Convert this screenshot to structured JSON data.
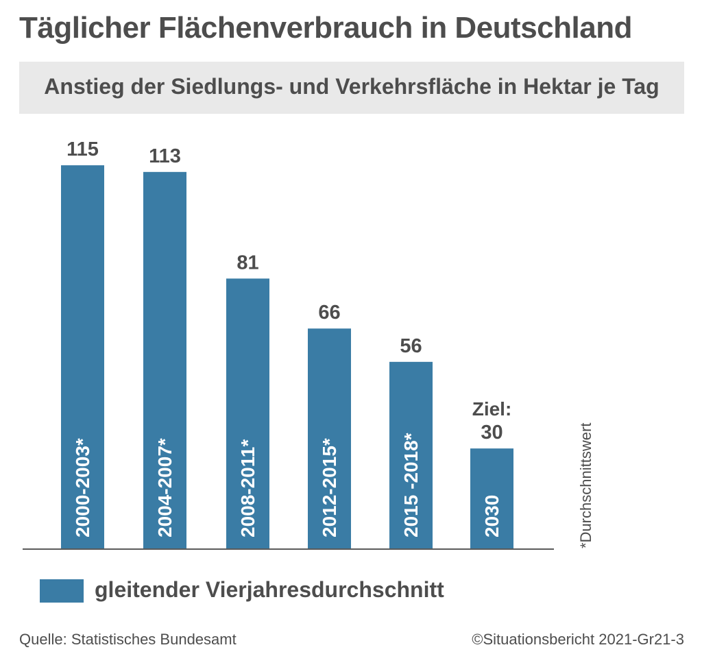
{
  "header": {
    "title": "Täglicher Flächenverbrauch in Deutschland",
    "subtitle": "Anstieg der Siedlungs- und Verkehrsfläche in Hektar je Tag"
  },
  "chart_data": {
    "type": "bar",
    "categories": [
      "2000-2003*",
      "2004-2007*",
      "2008-2011*",
      "2012-2015*",
      "2015 -2018*",
      "2030"
    ],
    "values": [
      115,
      113,
      81,
      66,
      56,
      30
    ],
    "value_labels": [
      "115",
      "113",
      "81",
      "66",
      "56",
      "30"
    ],
    "target_prefix": "Ziel:",
    "target_index": 5,
    "ylim": [
      0,
      120
    ],
    "grid": false,
    "bar_color": "#3a7ca5",
    "legend": {
      "label": "gleitender Vierjahresdurchschnitt",
      "position": "bottom-left"
    },
    "footnote": "*Durchschnittswert"
  },
  "footer": {
    "source": "Quelle: Statistisches Bundesamt",
    "copyright": "©Situationsbericht 2021-Gr21-3"
  }
}
